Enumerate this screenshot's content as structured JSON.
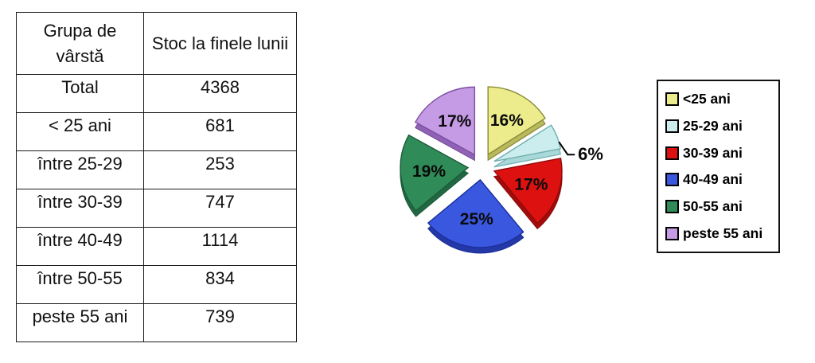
{
  "table": {
    "headers": [
      "Grupa de vârstă",
      "Stoc la finele lunii"
    ],
    "rows": [
      [
        "Total",
        "4368"
      ],
      [
        "< 25 ani",
        "681"
      ],
      [
        "între 25-29",
        "253"
      ],
      [
        "între 30-39",
        "747"
      ],
      [
        "între 40-49",
        "1114"
      ],
      [
        "între 50-55",
        "834"
      ],
      [
        "peste 55 ani",
        "739"
      ]
    ]
  },
  "chart_data": {
    "type": "pie",
    "categories": [
      "<25 ani",
      "25-29 ani",
      "30-39 ani",
      "40-49 ani",
      "50-55 ani",
      "peste 55 ani"
    ],
    "values": [
      16,
      6,
      17,
      25,
      19,
      17
    ],
    "value_labels": [
      "16%",
      "6%",
      "17%",
      "25%",
      "19%",
      "17%"
    ],
    "counts_from_table": [
      681,
      253,
      747,
      1114,
      834,
      739
    ],
    "total_from_table": 4368,
    "colors": [
      "#ECEC8C",
      "#CBEDED",
      "#DE1111",
      "#3A57DF",
      "#2F8B58",
      "#C59BE5"
    ],
    "edge_colors": [
      "#8A8A3A",
      "#6FAFAF",
      "#8F0909",
      "#1B2F9A",
      "#1B5A36",
      "#7C4FA0"
    ],
    "side_colors": [
      "#B9B95E",
      "#A8D8D8",
      "#A30C0C",
      "#2438A8",
      "#226844",
      "#8F62B5"
    ],
    "label_color": "#0a0a0a",
    "label_outside": [
      false,
      true,
      false,
      false,
      false,
      false
    ],
    "exploded": true,
    "effect_3d": true,
    "start_angle_deg": 0,
    "legend_position": "right",
    "title": ""
  }
}
